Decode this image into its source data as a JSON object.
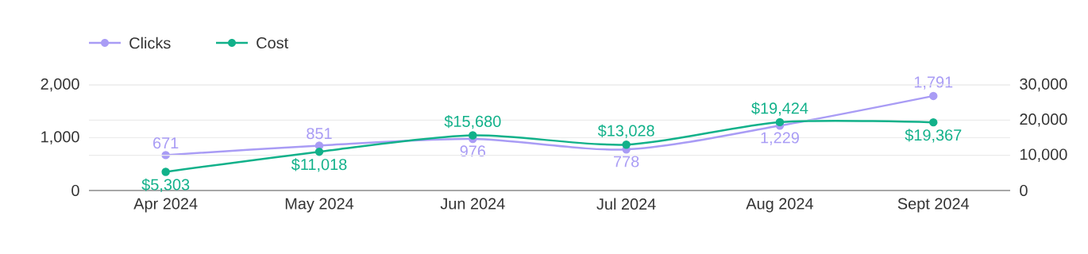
{
  "chart_data": {
    "type": "line",
    "categories": [
      "Apr 2024",
      "May 2024",
      "Jun 2024",
      "Jul 2024",
      "Aug 2024",
      "Sept 2024"
    ],
    "series": [
      {
        "name": "Clicks",
        "color": "#a99cf5",
        "values": [
          671,
          851,
          976,
          778,
          1229,
          1791
        ],
        "value_labels": [
          "671",
          "851",
          "976",
          "778",
          "1,229",
          "1,791"
        ]
      },
      {
        "name": "Cost",
        "color": "#12b18a",
        "axis": "y2",
        "values": [
          5303,
          11018,
          15680,
          13028,
          19424,
          19367
        ],
        "value_labels": [
          "$5,303",
          "$11,018",
          "$15,680",
          "$13,028",
          "$19,424",
          "$19,367"
        ]
      }
    ],
    "ylim": [
      0,
      2000
    ],
    "yticks": [
      {
        "value": 0,
        "label": "0"
      },
      {
        "value": 1000,
        "label": "1,000"
      },
      {
        "value": 2000,
        "label": "2,000"
      }
    ],
    "y2lim": [
      0,
      30000
    ],
    "y2ticks": [
      {
        "value": 0,
        "label": "0"
      },
      {
        "value": 10000,
        "label": "10,000"
      },
      {
        "value": 20000,
        "label": "20,000"
      },
      {
        "value": 30000,
        "label": "30,000"
      }
    ],
    "grid": "y",
    "legend": "top left",
    "marker": "circle",
    "line_style": "solid"
  }
}
